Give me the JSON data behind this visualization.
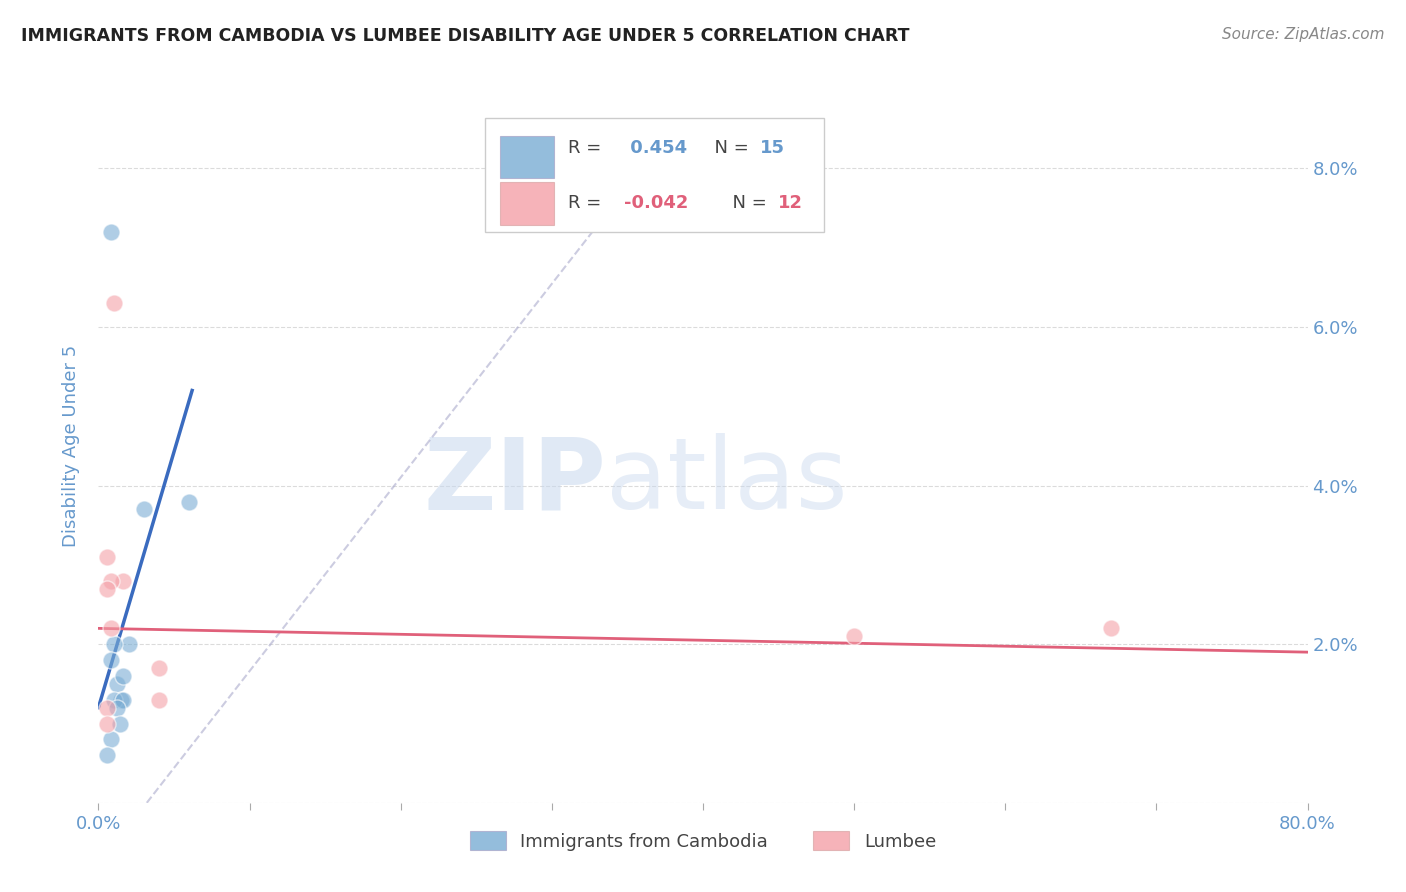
{
  "title": "IMMIGRANTS FROM CAMBODIA VS LUMBEE DISABILITY AGE UNDER 5 CORRELATION CHART",
  "source": "Source: ZipAtlas.com",
  "ylabel": "Disability Age Under 5",
  "xlim": [
    0,
    0.8
  ],
  "ylim": [
    0,
    0.09
  ],
  "xticks": [
    0.0,
    0.1,
    0.2,
    0.3,
    0.4,
    0.5,
    0.6,
    0.7,
    0.8
  ],
  "yticks": [
    0.0,
    0.02,
    0.04,
    0.06,
    0.08
  ],
  "yticklabels_right": [
    "",
    "2.0%",
    "4.0%",
    "6.0%",
    "8.0%"
  ],
  "blue_label": "Immigrants from Cambodia",
  "pink_label": "Lumbee",
  "blue_R": 0.454,
  "blue_N": 15,
  "pink_R": -0.042,
  "pink_N": 12,
  "blue_scatter_x": [
    0.008,
    0.02,
    0.03,
    0.01,
    0.008,
    0.012,
    0.015,
    0.01,
    0.016,
    0.012,
    0.016,
    0.014,
    0.06,
    0.008,
    0.006
  ],
  "blue_scatter_y": [
    0.072,
    0.02,
    0.037,
    0.02,
    0.018,
    0.015,
    0.013,
    0.013,
    0.013,
    0.012,
    0.016,
    0.01,
    0.038,
    0.008,
    0.006
  ],
  "pink_scatter_x": [
    0.01,
    0.016,
    0.008,
    0.008,
    0.006,
    0.006,
    0.04,
    0.04,
    0.5,
    0.67,
    0.006,
    0.006
  ],
  "pink_scatter_y": [
    0.063,
    0.028,
    0.028,
    0.022,
    0.031,
    0.027,
    0.017,
    0.013,
    0.021,
    0.022,
    0.012,
    0.01
  ],
  "blue_line_x": [
    0.0,
    0.062
  ],
  "blue_line_y": [
    0.012,
    0.052
  ],
  "pink_line_x": [
    0.0,
    0.8
  ],
  "pink_line_y": [
    0.022,
    0.019
  ],
  "diag_line_x": [
    0.032,
    0.38
  ],
  "diag_line_y": [
    0.0,
    0.085
  ],
  "watermark_zip": "ZIP",
  "watermark_atlas": "atlas",
  "background_color": "#ffffff",
  "blue_color": "#7aadd4",
  "pink_color": "#f4a0a8",
  "blue_line_color": "#3a6bbf",
  "pink_line_color": "#e0607a",
  "title_color": "#222222",
  "axis_label_color": "#6699cc",
  "tick_color": "#6699cc",
  "grid_color": "#cccccc",
  "scatter_size": 150
}
